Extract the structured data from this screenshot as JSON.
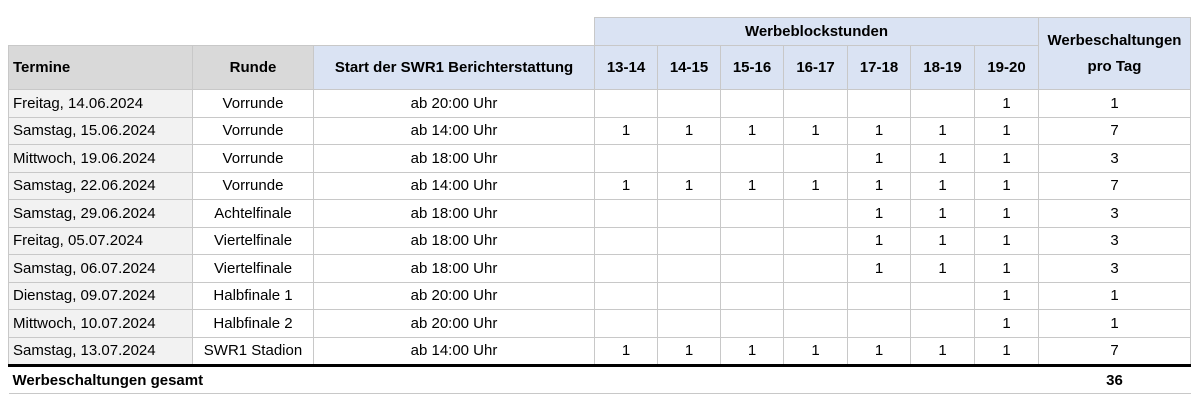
{
  "header": {
    "termine": "Termine",
    "runde": "Runde",
    "start": "Start der SWR1 Berichterstattung",
    "group": "Werbeblockstunden",
    "hours": [
      "13-14",
      "14-15",
      "15-16",
      "16-17",
      "17-18",
      "18-19",
      "19-20"
    ],
    "per_day": "Werbeschaltungen pro Tag"
  },
  "rows": [
    {
      "termin": "Freitag, 14.06.2024",
      "runde": "Vorrunde",
      "start": "ab 20:00 Uhr",
      "hours": [
        "",
        "",
        "",
        "",
        "",
        "",
        "1"
      ],
      "total": "1"
    },
    {
      "termin": "Samstag, 15.06.2024",
      "runde": "Vorrunde",
      "start": "ab 14:00 Uhr",
      "hours": [
        "1",
        "1",
        "1",
        "1",
        "1",
        "1",
        "1"
      ],
      "total": "7"
    },
    {
      "termin": "Mittwoch, 19.06.2024",
      "runde": "Vorrunde",
      "start": "ab 18:00 Uhr",
      "hours": [
        "",
        "",
        "",
        "",
        "1",
        "1",
        "1"
      ],
      "total": "3"
    },
    {
      "termin": "Samstag, 22.06.2024",
      "runde": "Vorrunde",
      "start": "ab 14:00 Uhr",
      "hours": [
        "1",
        "1",
        "1",
        "1",
        "1",
        "1",
        "1"
      ],
      "total": "7"
    },
    {
      "termin": "Samstag, 29.06.2024",
      "runde": "Achtelfinale",
      "start": "ab 18:00 Uhr",
      "hours": [
        "",
        "",
        "",
        "",
        "1",
        "1",
        "1"
      ],
      "total": "3"
    },
    {
      "termin": "Freitag, 05.07.2024",
      "runde": "Viertelfinale",
      "start": "ab 18:00 Uhr",
      "hours": [
        "",
        "",
        "",
        "",
        "1",
        "1",
        "1"
      ],
      "total": "3"
    },
    {
      "termin": "Samstag, 06.07.2024",
      "runde": "Viertelfinale",
      "start": "ab 18:00 Uhr",
      "hours": [
        "",
        "",
        "",
        "",
        "1",
        "1",
        "1"
      ],
      "total": "3"
    },
    {
      "termin": "Dienstag, 09.07.2024",
      "runde": "Halbfinale 1",
      "start": "ab 20:00 Uhr",
      "hours": [
        "",
        "",
        "",
        "",
        "",
        "",
        "1"
      ],
      "total": "1"
    },
    {
      "termin": "Mittwoch, 10.07.2024",
      "runde": "Halbfinale 2",
      "start": "ab 20:00 Uhr",
      "hours": [
        "",
        "",
        "",
        "",
        "",
        "",
        "1"
      ],
      "total": "1"
    },
    {
      "termin": "Samstag, 13.07.2024",
      "runde": "SWR1 Stadion",
      "start": "ab 14:00 Uhr",
      "hours": [
        "1",
        "1",
        "1",
        "1",
        "1",
        "1",
        "1"
      ],
      "total": "7"
    }
  ],
  "footer": {
    "label": "Werbeschaltungen gesamt",
    "total": "36"
  }
}
